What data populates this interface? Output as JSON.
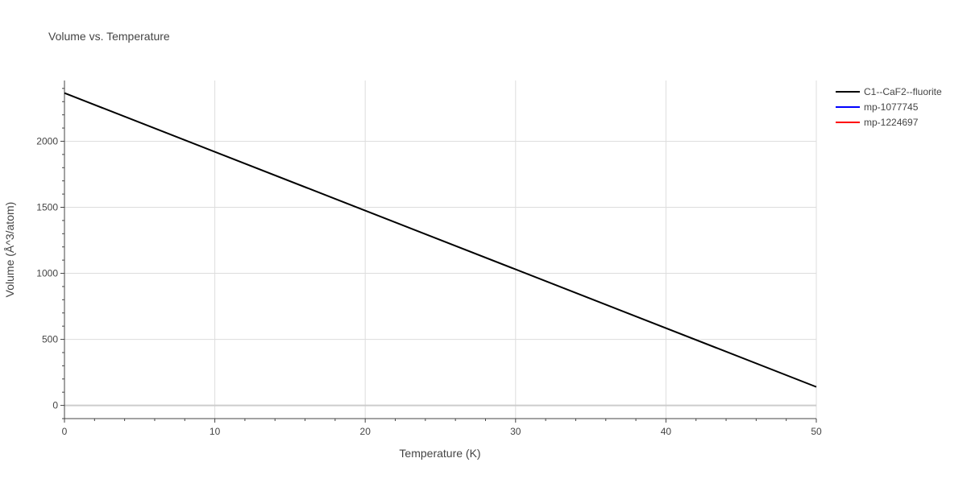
{
  "chart_data": {
    "type": "line",
    "title": "Volume vs. Temperature",
    "xlabel": "Temperature (K)",
    "ylabel": "Volume (Å^3/atom)",
    "xlim": [
      0,
      50
    ],
    "ylim": [
      -100,
      2460
    ],
    "x_ticks": [
      0,
      10,
      20,
      30,
      40,
      50
    ],
    "y_ticks": [
      0,
      500,
      1000,
      1500,
      2000
    ],
    "grid": true,
    "legend_position": "top-right",
    "series": [
      {
        "name": "C1--CaF2--fluorite",
        "color": "#000000",
        "x": [
          0,
          50
        ],
        "y": [
          2365,
          140
        ]
      },
      {
        "name": "mp-1077745",
        "color": "#0000ff",
        "x": [],
        "y": []
      },
      {
        "name": "mp-1224697",
        "color": "#ff0000",
        "x": [],
        "y": []
      }
    ]
  }
}
